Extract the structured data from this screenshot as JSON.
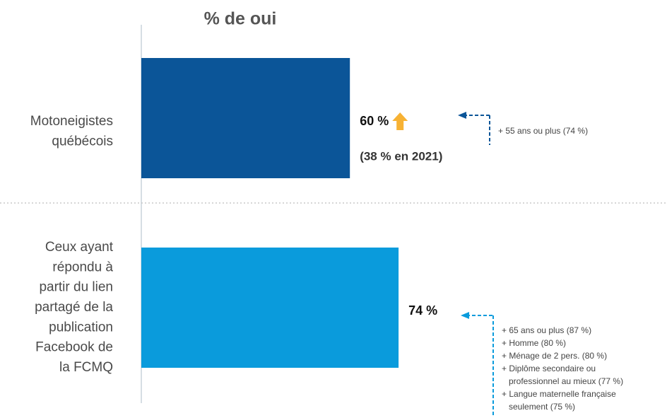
{
  "chart_data": {
    "type": "bar",
    "orientation": "horizontal",
    "title": "% de oui",
    "categories": [
      [
        "Motoneigistes",
        "québécois"
      ],
      [
        "Ceux ayant",
        "répondu à",
        "partir du lien",
        "partagé de la",
        "publication",
        "Facebook de",
        "la FCMQ"
      ]
    ],
    "values": [
      60,
      74
    ],
    "value_labels": [
      "60 %",
      "74 %"
    ],
    "colors": [
      "#0b5598",
      "#0a9bdc"
    ],
    "xlim": [
      0,
      100
    ],
    "comparison": {
      "label": "(38 % en 2021)",
      "arrow_color": "#f7b234"
    },
    "subgroups": [
      [
        [
          "+ 55 ans ou plus (74 %)"
        ]
      ],
      [
        [
          "+ 65 ans ou plus (87 %)"
        ],
        [
          "+ Homme (80 %)"
        ],
        [
          "+ Ménage de 2 pers. (80 %)"
        ],
        [
          "+ Diplôme secondaire ou",
          "professionnel au mieux (77 %)"
        ],
        [
          "+ Langue maternelle française",
          "seulement (75 %)"
        ]
      ]
    ]
  }
}
